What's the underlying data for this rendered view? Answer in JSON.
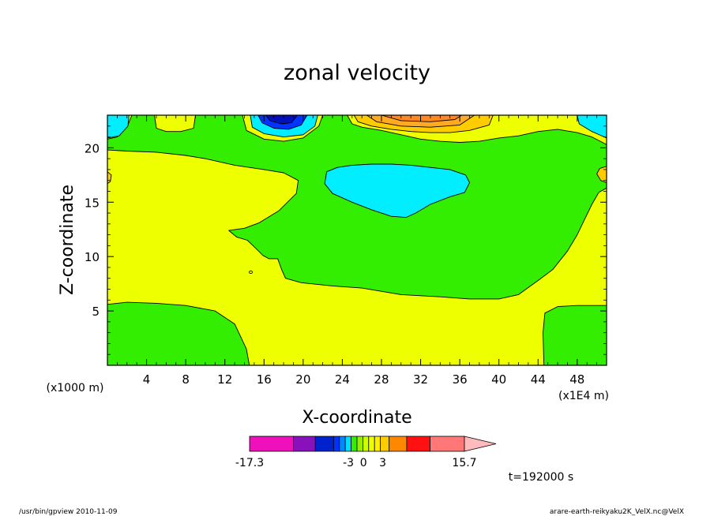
{
  "chart_data": {
    "type": "heatmap",
    "title": "zonal velocity",
    "xlabel": "X-coordinate",
    "ylabel": "Z-coordinate",
    "x_unit_label": "(x1E4 m)",
    "y_unit_label": "(x1000 m)",
    "xlim": [
      0,
      51
    ],
    "ylim": [
      0,
      23
    ],
    "x_ticks": [
      4,
      8,
      12,
      16,
      20,
      24,
      28,
      32,
      36,
      40,
      44,
      48
    ],
    "y_ticks": [
      5,
      10,
      15,
      20
    ],
    "regions": [
      {
        "level": "green",
        "color": "#33ee00",
        "points": [
          [
            0,
            5.6
          ],
          [
            2,
            5.8
          ],
          [
            5,
            5.7
          ],
          [
            8,
            5.5
          ],
          [
            11,
            5.0
          ],
          [
            13,
            3.8
          ],
          [
            14.2,
            1.5
          ],
          [
            14.5,
            0
          ],
          [
            0,
            0
          ]
        ]
      },
      {
        "level": "green",
        "color": "#33ee00",
        "points": [
          [
            44.6,
            0
          ],
          [
            44.5,
            3
          ],
          [
            44.7,
            4.8
          ],
          [
            46,
            5.4
          ],
          [
            48,
            5.5
          ],
          [
            51,
            5.5
          ],
          [
            51,
            0
          ]
        ]
      },
      {
        "level": "green",
        "color": "#33ee00",
        "points": [
          [
            0,
            19.8
          ],
          [
            2,
            19.7
          ],
          [
            5,
            19.6
          ],
          [
            8,
            19.3
          ],
          [
            10,
            19.0
          ],
          [
            13,
            18.4
          ],
          [
            16,
            18.0
          ],
          [
            18,
            17.7
          ],
          [
            19.5,
            17.0
          ],
          [
            19.3,
            15.8
          ],
          [
            17.5,
            14.2
          ],
          [
            15.5,
            13.1
          ],
          [
            14,
            12.6
          ],
          [
            12.4,
            12.4
          ],
          [
            13.2,
            11.8
          ],
          [
            14.3,
            11.5
          ],
          [
            15,
            10.9
          ],
          [
            15.9,
            10.1
          ],
          [
            16.5,
            9.8
          ],
          [
            17.4,
            9.8
          ],
          [
            17.8,
            8.8
          ],
          [
            18.2,
            8.0
          ],
          [
            19.8,
            7.6
          ],
          [
            23,
            7.3
          ],
          [
            26,
            7.1
          ],
          [
            30,
            6.5
          ],
          [
            34,
            6.3
          ],
          [
            37,
            6.1
          ],
          [
            40,
            6.1
          ],
          [
            42,
            6.5
          ],
          [
            44,
            7.8
          ],
          [
            45.5,
            8.8
          ],
          [
            47,
            10.5
          ],
          [
            48,
            12.0
          ],
          [
            48.8,
            13.5
          ],
          [
            49.5,
            14.8
          ],
          [
            50.2,
            15.9
          ],
          [
            51,
            16.3
          ],
          [
            51,
            20.3
          ],
          [
            49.5,
            21.0
          ],
          [
            48,
            21.4
          ],
          [
            46,
            21.7
          ],
          [
            44,
            21.5
          ],
          [
            42,
            21.1
          ],
          [
            40,
            20.9
          ],
          [
            38,
            20.6
          ],
          [
            36,
            20.5
          ],
          [
            34,
            20.6
          ],
          [
            32,
            20.8
          ],
          [
            30,
            21.2
          ],
          [
            28,
            21.6
          ],
          [
            26,
            21.9
          ],
          [
            25,
            22.2
          ],
          [
            24.5,
            23
          ],
          [
            22,
            23
          ],
          [
            21.6,
            22.0
          ],
          [
            20,
            20.9
          ],
          [
            18,
            20.6
          ],
          [
            16,
            20.8
          ],
          [
            14.2,
            21.6
          ],
          [
            13.8,
            23
          ],
          [
            9,
            23
          ],
          [
            8.8,
            21.8
          ],
          [
            7.5,
            21.5
          ],
          [
            6,
            21.5
          ],
          [
            5,
            21.8
          ],
          [
            4.8,
            23
          ],
          [
            2.5,
            23
          ],
          [
            2,
            21.9
          ],
          [
            1,
            21.0
          ],
          [
            0,
            20.8
          ]
        ]
      },
      {
        "level": "cyan",
        "color": "#00eeff",
        "points": [
          [
            0,
            20.9
          ],
          [
            1.2,
            21.1
          ],
          [
            2.1,
            22.0
          ],
          [
            2.2,
            23
          ],
          [
            0,
            23
          ]
        ]
      },
      {
        "level": "cyan",
        "color": "#00eeff",
        "points": [
          [
            51,
            20.9
          ],
          [
            49.5,
            21.5
          ],
          [
            48.2,
            22.2
          ],
          [
            48,
            23
          ],
          [
            51,
            23
          ]
        ]
      },
      {
        "level": "cyan",
        "color": "#00eeff",
        "points": [
          [
            14.6,
            23
          ],
          [
            14.8,
            21.9
          ],
          [
            16,
            21.3
          ],
          [
            18,
            21.0
          ],
          [
            20,
            21.2
          ],
          [
            21.2,
            22.0
          ],
          [
            21.5,
            23
          ]
        ]
      },
      {
        "level": "blue",
        "color": "#0033ff",
        "points": [
          [
            15.4,
            23
          ],
          [
            15.8,
            22.3
          ],
          [
            17,
            21.8
          ],
          [
            18.5,
            21.7
          ],
          [
            19.8,
            22.1
          ],
          [
            20.4,
            23
          ]
        ]
      },
      {
        "level": "navy",
        "color": "#0011bb",
        "points": [
          [
            16.2,
            23
          ],
          [
            16.6,
            22.5
          ],
          [
            17.8,
            22.2
          ],
          [
            18.8,
            22.3
          ],
          [
            19.4,
            23
          ]
        ]
      },
      {
        "level": "cyan",
        "color": "#00eeff",
        "points": [
          [
            22.4,
            17.8
          ],
          [
            23.5,
            18.2
          ],
          [
            25,
            18.4
          ],
          [
            27,
            18.5
          ],
          [
            29,
            18.5
          ],
          [
            31,
            18.4
          ],
          [
            33,
            18.2
          ],
          [
            35,
            18.0
          ],
          [
            36.6,
            17.5
          ],
          [
            37,
            16.8
          ],
          [
            36.5,
            15.9
          ],
          [
            35,
            15.5
          ],
          [
            33,
            14.8
          ],
          [
            31.5,
            14.0
          ],
          [
            30.5,
            13.6
          ],
          [
            29,
            13.7
          ],
          [
            27,
            14.3
          ],
          [
            25,
            15.0
          ],
          [
            23,
            15.8
          ],
          [
            22.2,
            16.7
          ]
        ]
      },
      {
        "level": "yellow-orange",
        "color": "#ffcc00",
        "points": [
          [
            25.2,
            23
          ],
          [
            25.6,
            22.4
          ],
          [
            27,
            22.0
          ],
          [
            29,
            21.7
          ],
          [
            31,
            21.5
          ],
          [
            33,
            21.4
          ],
          [
            35,
            21.4
          ],
          [
            37,
            21.6
          ],
          [
            39,
            22.1
          ],
          [
            39.4,
            23
          ]
        ]
      },
      {
        "level": "orange-light",
        "color": "#ffaa22",
        "points": [
          [
            26.5,
            23
          ],
          [
            27.5,
            22.4
          ],
          [
            30,
            22.0
          ],
          [
            33,
            21.9
          ],
          [
            36,
            22.1
          ],
          [
            37.5,
            23
          ]
        ]
      },
      {
        "level": "orange",
        "color": "#ff8822",
        "points": [
          [
            28,
            23
          ],
          [
            30,
            22.5
          ],
          [
            33,
            22.4
          ],
          [
            35.5,
            22.6
          ],
          [
            36.2,
            23
          ]
        ]
      },
      {
        "level": "yellow-orange",
        "color": "#ffcc00",
        "points": [
          [
            51,
            18.3
          ],
          [
            50.3,
            18.1
          ],
          [
            50.0,
            17.6
          ],
          [
            50.4,
            17.0
          ],
          [
            51,
            16.8
          ]
        ]
      },
      {
        "level": "yellow-orange",
        "color": "#ffcc00",
        "points": [
          [
            0,
            17.8
          ],
          [
            0.4,
            17.5
          ],
          [
            0.3,
            16.9
          ],
          [
            0,
            16.7
          ]
        ]
      }
    ],
    "colorbar": {
      "colors": [
        "#ee11bb",
        "#8811bb",
        "#0022cc",
        "#0033ff",
        "#0088ff",
        "#00ddff",
        "#33ee00",
        "#99ee00",
        "#ccff00",
        "#eeff00",
        "#ffee00",
        "#ffcc00",
        "#ff8800",
        "#ff1111",
        "#ff7777"
      ],
      "weights": [
        6,
        3,
        2.5,
        0.8,
        0.8,
        0.8,
        0.8,
        0.8,
        0.8,
        0.8,
        0.8,
        1.2,
        2.4,
        3.2,
        4.7
      ],
      "extend_color": "#ffbbbb",
      "tick_labels": [
        "-17.3",
        "-3",
        "0",
        "3",
        "15.7"
      ],
      "tick_positions": [
        0,
        0.46,
        0.53,
        0.62,
        1.0
      ]
    }
  },
  "time_label": "t=192000 s",
  "footer": {
    "left": "/usr/bin/gpview   2010-11-09",
    "right": "arare-earth-reikyaku2K_VelX.nc@VelX"
  }
}
